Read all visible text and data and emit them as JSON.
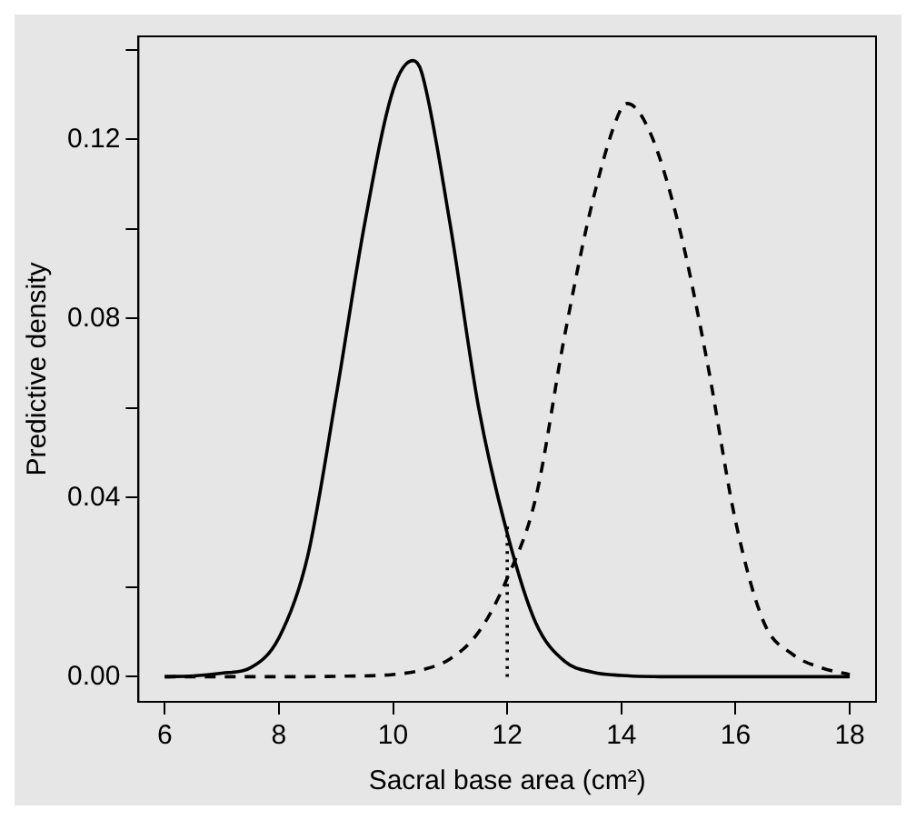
{
  "chart_data": {
    "type": "line",
    "xlabel": "Sacral base area (cm²)",
    "ylabel": "Predictive density",
    "xlim": [
      5.54,
      18.46
    ],
    "ylim": [
      -0.0056,
      0.143
    ],
    "xticks": [
      6,
      8,
      10,
      12,
      14,
      16,
      18
    ],
    "yticks": [
      {
        "value": 0,
        "label": "0.00"
      },
      {
        "value": 0.02,
        "label": null
      },
      {
        "value": 0.04,
        "label": "0.04"
      },
      {
        "value": 0.06,
        "label": null
      },
      {
        "value": 0.08,
        "label": "0.08"
      },
      {
        "value": 0.1,
        "label": null
      },
      {
        "value": 0.12,
        "label": "0.12"
      },
      {
        "value": 0.14,
        "label": null
      }
    ],
    "grid": false,
    "legend": false,
    "marker": "none",
    "series": [
      {
        "color": "#000000",
        "line_style": "solid",
        "x": [
          6,
          6.5,
          7,
          7.5,
          8,
          8.5,
          9,
          9.5,
          10,
          10.35,
          10.5,
          11,
          11.5,
          12,
          12.5,
          13,
          13.5,
          14,
          15,
          16,
          17,
          18
        ],
        "values": [
          0,
          0.0002,
          0.0008,
          0.002,
          0.0087,
          0.0267,
          0.0625,
          0.101,
          0.131,
          0.1376,
          0.135,
          0.101,
          0.06,
          0.032,
          0.012,
          0.0035,
          0.001,
          0.0003,
          0,
          0,
          0,
          0
        ]
      },
      {
        "color": "#000000",
        "line_style": "dashed",
        "x": [
          6,
          7,
          8,
          9,
          10,
          10.5,
          11,
          11.5,
          12,
          12.5,
          13,
          13.5,
          14,
          14.1,
          14.5,
          15,
          15.5,
          16,
          16.5,
          17,
          17.5,
          18
        ],
        "values": [
          0,
          0,
          0,
          0.0001,
          0.0005,
          0.0015,
          0.004,
          0.01,
          0.022,
          0.04,
          0.0758,
          0.1064,
          0.127,
          0.128,
          0.1216,
          0.101,
          0.0705,
          0.0347,
          0.012,
          0.005,
          0.002,
          0.0005
        ]
      },
      {
        "color": "#000000",
        "line_style": "dotted",
        "x": [
          12,
          12
        ],
        "values": [
          0,
          0.034
        ]
      }
    ]
  }
}
